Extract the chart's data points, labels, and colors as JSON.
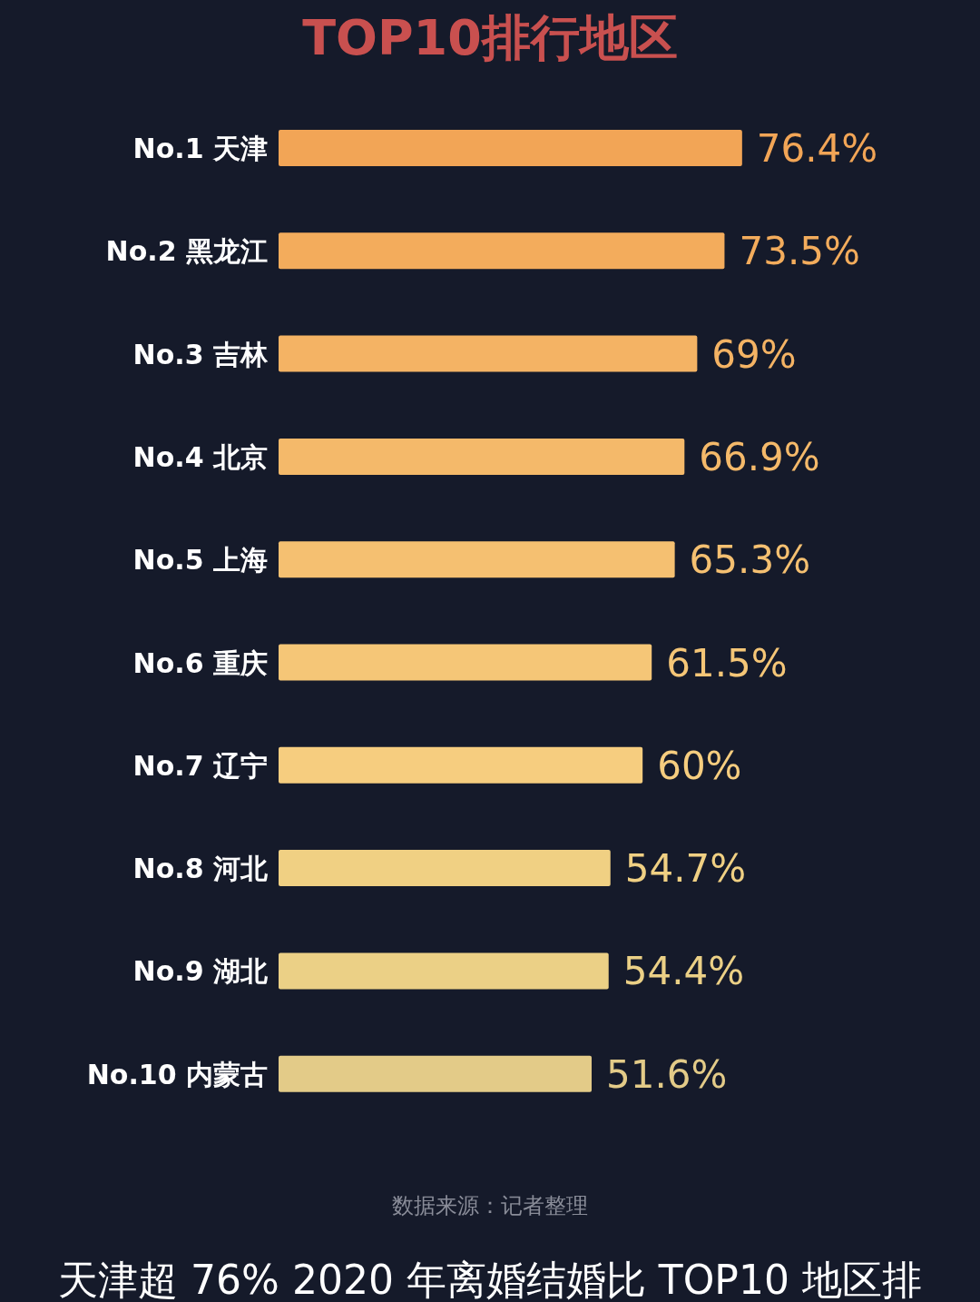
{
  "chart_data": {
    "type": "bar",
    "orientation": "horizontal",
    "title": "TOP10排行地区",
    "categories": [
      "No.1 天津",
      "No.2 黑龙江",
      "No.3 吉林",
      "No.4 北京",
      "No.5 上海",
      "No.6 重庆",
      "No.7 辽宁",
      "No.8 河北",
      "No.9 湖北",
      "No.10 内蒙古"
    ],
    "values": [
      76.4,
      73.5,
      69,
      66.9,
      65.3,
      61.5,
      60,
      54.7,
      54.4,
      51.6
    ],
    "value_labels": [
      "76.4%",
      "73.5%",
      "69%",
      "66.9%",
      "65.3%",
      "61.5%",
      "60%",
      "54.7%",
      "54.4%",
      "51.6%"
    ],
    "colors": [
      "#f2a556",
      "#f3ac5c",
      "#f4b364",
      "#f4b96a",
      "#f5c071",
      "#f5c677",
      "#f6cd7f",
      "#f0d083",
      "#ebd086",
      "#e3cb88"
    ],
    "annotations": [
      "数据来源：记者整理",
      "天津超 76% 2020 年离婚结婚比 TOP10 地区排"
    ]
  }
}
